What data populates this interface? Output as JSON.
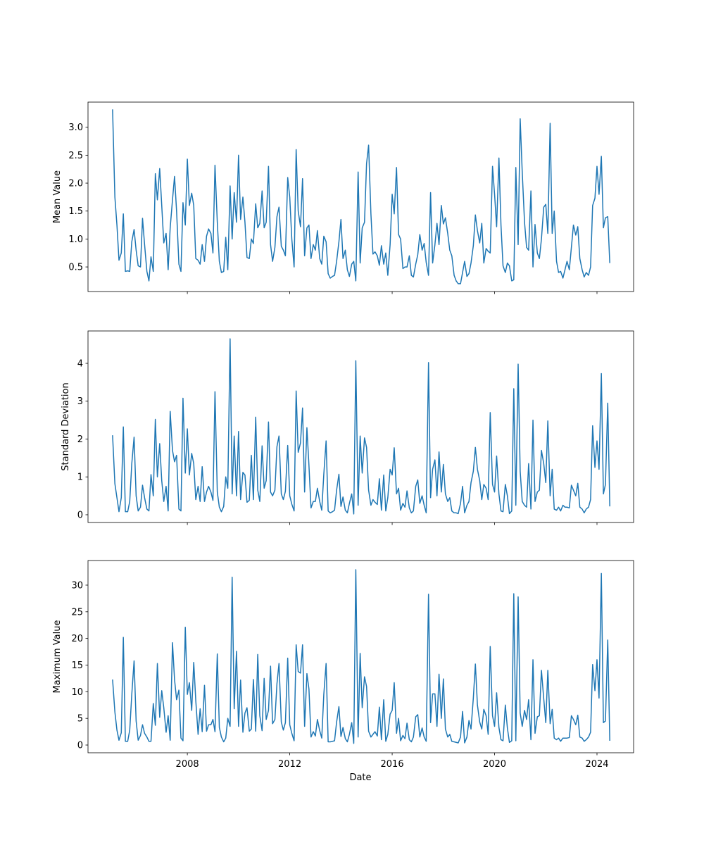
{
  "chart_data": {
    "type": "line",
    "xlabel": "Date",
    "xlim": [
      2004.12,
      2025.43
    ],
    "xticks": [
      2008,
      2012,
      2016,
      2020,
      2024
    ],
    "x": [
      2005.08,
      2005.17,
      2005.25,
      2005.33,
      2005.42,
      2005.5,
      2005.58,
      2005.67,
      2005.75,
      2005.83,
      2005.92,
      2006.0,
      2006.08,
      2006.17,
      2006.25,
      2006.33,
      2006.42,
      2006.5,
      2006.58,
      2006.67,
      2006.75,
      2006.83,
      2006.92,
      2007.0,
      2007.08,
      2007.17,
      2007.25,
      2007.33,
      2007.42,
      2007.5,
      2007.58,
      2007.67,
      2007.75,
      2007.83,
      2007.92,
      2008.0,
      2008.08,
      2008.17,
      2008.25,
      2008.33,
      2008.42,
      2008.5,
      2008.58,
      2008.67,
      2008.75,
      2008.83,
      2008.92,
      2009.0,
      2009.08,
      2009.17,
      2009.25,
      2009.33,
      2009.42,
      2009.5,
      2009.58,
      2009.67,
      2009.75,
      2009.83,
      2009.92,
      2010.0,
      2010.08,
      2010.17,
      2010.25,
      2010.33,
      2010.42,
      2010.5,
      2010.58,
      2010.67,
      2010.75,
      2010.83,
      2010.92,
      2011.0,
      2011.08,
      2011.17,
      2011.25,
      2011.33,
      2011.42,
      2011.5,
      2011.58,
      2011.67,
      2011.75,
      2011.83,
      2011.92,
      2012.0,
      2012.08,
      2012.17,
      2012.25,
      2012.33,
      2012.42,
      2012.5,
      2012.58,
      2012.67,
      2012.75,
      2012.83,
      2012.92,
      2013.0,
      2013.08,
      2013.17,
      2013.25,
      2013.33,
      2013.42,
      2013.5,
      2013.58,
      2013.67,
      2013.75,
      2013.83,
      2013.92,
      2014.0,
      2014.08,
      2014.17,
      2014.25,
      2014.33,
      2014.42,
      2014.5,
      2014.58,
      2014.67,
      2014.75,
      2014.83,
      2014.92,
      2015.0,
      2015.08,
      2015.17,
      2015.25,
      2015.33,
      2015.42,
      2015.5,
      2015.58,
      2015.67,
      2015.75,
      2015.83,
      2015.92,
      2016.0,
      2016.08,
      2016.17,
      2016.25,
      2016.33,
      2016.42,
      2016.5,
      2016.58,
      2016.67,
      2016.75,
      2016.83,
      2016.92,
      2017.0,
      2017.08,
      2017.17,
      2017.25,
      2017.33,
      2017.42,
      2017.5,
      2017.58,
      2017.67,
      2017.75,
      2017.83,
      2017.92,
      2018.0,
      2018.08,
      2018.17,
      2018.25,
      2018.33,
      2018.42,
      2018.5,
      2018.58,
      2018.67,
      2018.75,
      2018.83,
      2018.92,
      2019.0,
      2019.08,
      2019.17,
      2019.25,
      2019.33,
      2019.42,
      2019.5,
      2019.58,
      2019.67,
      2019.75,
      2019.83,
      2019.92,
      2020.0,
      2020.08,
      2020.17,
      2020.25,
      2020.33,
      2020.42,
      2020.5,
      2020.58,
      2020.67,
      2020.75,
      2020.83,
      2020.92,
      2021.0,
      2021.08,
      2021.17,
      2021.25,
      2021.33,
      2021.42,
      2021.5,
      2021.58,
      2021.67,
      2021.75,
      2021.83,
      2021.92,
      2022.0,
      2022.08,
      2022.17,
      2022.25,
      2022.33,
      2022.42,
      2022.5,
      2022.58,
      2022.67,
      2022.75,
      2022.83,
      2022.92,
      2023.0,
      2023.08,
      2023.17,
      2023.25,
      2023.33,
      2023.42,
      2023.5,
      2023.58,
      2023.67,
      2023.75,
      2023.83,
      2023.92,
      2024.0,
      2024.08,
      2024.17,
      2024.25,
      2024.33,
      2024.42,
      2024.5
    ],
    "panels": [
      {
        "ylabel": "Mean Value",
        "ylim": [
          0.06,
          3.45
        ],
        "yticks": [
          0.5,
          {
            "value": 1,
            "label": "1.0"
          },
          1.5,
          {
            "value": 2,
            "label": "2.0"
          },
          2.5,
          {
            "value": 3,
            "label": "3.0"
          }
        ],
        "series": [
          {
            "color": "#1f77b4",
            "values": [
              3.32,
              1.75,
              1.25,
              0.62,
              0.75,
              1.45,
              0.42,
              0.43,
              0.42,
              0.95,
              1.17,
              0.8,
              0.52,
              0.5,
              1.37,
              0.9,
              0.42,
              0.25,
              0.68,
              0.42,
              2.17,
              1.7,
              2.26,
              1.6,
              0.93,
              1.1,
              0.45,
              1.2,
              1.7,
              2.12,
              1.5,
              0.55,
              0.42,
              1.65,
              1.25,
              2.43,
              1.6,
              1.82,
              1.6,
              0.65,
              0.62,
              0.55,
              0.9,
              0.6,
              1.05,
              1.18,
              1.1,
              0.75,
              2.32,
              1.3,
              0.6,
              0.4,
              0.42,
              1.03,
              0.45,
              1.95,
              1.0,
              1.83,
              1.3,
              2.5,
              1.35,
              1.75,
              1.3,
              0.67,
              0.65,
              1.0,
              0.92,
              1.63,
              1.2,
              1.28,
              1.86,
              1.2,
              1.3,
              2.3,
              0.9,
              0.6,
              0.85,
              1.4,
              1.57,
              0.87,
              0.8,
              0.7,
              2.1,
              1.75,
              1.0,
              0.5,
              2.6,
              1.5,
              1.22,
              2.08,
              0.7,
              1.2,
              1.25,
              0.65,
              0.9,
              0.8,
              1.15,
              0.65,
              0.55,
              1.05,
              0.95,
              0.38,
              0.3,
              0.33,
              0.35,
              0.6,
              0.95,
              1.35,
              0.65,
              0.8,
              0.45,
              0.33,
              0.55,
              0.6,
              0.25,
              2.2,
              0.57,
              1.2,
              1.3,
              2.35,
              2.68,
              1.45,
              0.73,
              0.77,
              0.7,
              0.53,
              0.88,
              0.55,
              0.75,
              0.35,
              0.9,
              1.8,
              1.45,
              2.28,
              1.08,
              1.0,
              0.47,
              0.5,
              0.5,
              0.7,
              0.35,
              0.32,
              0.55,
              0.72,
              1.08,
              0.8,
              0.92,
              0.58,
              0.35,
              1.83,
              0.57,
              0.9,
              1.28,
              0.9,
              1.6,
              1.27,
              1.38,
              1.1,
              0.8,
              0.7,
              0.35,
              0.25,
              0.2,
              0.2,
              0.4,
              0.6,
              0.33,
              0.38,
              0.57,
              0.88,
              1.43,
              1.15,
              0.93,
              1.28,
              0.57,
              0.83,
              0.78,
              0.75,
              2.3,
              1.8,
              1.22,
              2.45,
              1.25,
              0.52,
              0.4,
              0.57,
              0.52,
              0.25,
              0.27,
              2.28,
              0.9,
              3.15,
              2.2,
              1.3,
              0.85,
              0.8,
              1.86,
              0.5,
              1.26,
              0.75,
              0.65,
              1.0,
              1.57,
              1.62,
              1.1,
              3.07,
              1.1,
              1.5,
              0.6,
              0.4,
              0.42,
              0.3,
              0.45,
              0.6,
              0.45,
              0.85,
              1.25,
              1.07,
              1.22,
              0.65,
              0.45,
              0.32,
              0.4,
              0.35,
              0.5,
              1.6,
              1.73,
              2.3,
              1.8,
              2.48,
              1.2,
              1.38,
              1.4,
              0.57
            ]
          }
        ]
      },
      {
        "ylabel": "Standard Deviation",
        "ylim": [
          -0.205,
          4.856
        ],
        "yticks": [
          0,
          1,
          2,
          3,
          4
        ],
        "series": [
          {
            "color": "#1f77b4",
            "values": [
              2.1,
              0.82,
              0.45,
              0.08,
              0.45,
              2.32,
              0.08,
              0.08,
              0.35,
              1.35,
              2.05,
              0.5,
              0.1,
              0.2,
              0.78,
              0.45,
              0.15,
              0.1,
              1.06,
              0.5,
              2.52,
              1.0,
              1.88,
              0.9,
              0.35,
              0.75,
              0.1,
              2.73,
              1.7,
              1.4,
              1.57,
              0.15,
              0.1,
              3.08,
              1.1,
              2.27,
              1.05,
              1.62,
              1.35,
              0.4,
              0.75,
              0.35,
              1.27,
              0.35,
              0.6,
              0.75,
              0.6,
              0.38,
              3.25,
              0.6,
              0.2,
              0.08,
              0.22,
              1.0,
              0.7,
              4.65,
              0.55,
              2.08,
              0.5,
              2.2,
              0.4,
              1.12,
              1.05,
              0.33,
              0.38,
              1.57,
              0.4,
              2.58,
              0.65,
              0.35,
              1.82,
              0.7,
              0.9,
              2.45,
              0.6,
              0.5,
              0.65,
              1.8,
              2.08,
              0.55,
              0.4,
              0.62,
              1.83,
              0.5,
              0.28,
              0.1,
              3.27,
              1.65,
              1.9,
              2.82,
              0.6,
              2.3,
              1.3,
              0.18,
              0.35,
              0.35,
              0.7,
              0.35,
              0.12,
              1.07,
              1.95,
              0.1,
              0.05,
              0.08,
              0.12,
              0.65,
              1.07,
              0.22,
              0.47,
              0.12,
              0.05,
              0.3,
              0.55,
              0.02,
              4.07,
              0.25,
              2.08,
              1.1,
              2.03,
              1.78,
              0.65,
              0.25,
              0.4,
              0.33,
              0.27,
              0.95,
              0.12,
              1.05,
              0.1,
              0.45,
              1.2,
              1.05,
              1.77,
              0.55,
              0.7,
              0.12,
              0.3,
              0.2,
              0.63,
              0.18,
              0.05,
              0.1,
              0.75,
              0.92,
              0.3,
              0.5,
              0.25,
              0.05,
              4.02,
              0.45,
              1.2,
              1.45,
              0.5,
              1.66,
              0.6,
              1.33,
              0.55,
              0.35,
              0.45,
              0.1,
              0.05,
              0.05,
              0.03,
              0.3,
              0.75,
              0.05,
              0.25,
              0.35,
              0.85,
              1.15,
              1.78,
              1.2,
              0.9,
              0.4,
              0.8,
              0.7,
              0.4,
              2.7,
              0.8,
              0.6,
              1.55,
              0.55,
              0.1,
              0.08,
              0.8,
              0.5,
              0.03,
              0.1,
              3.33,
              0.25,
              3.98,
              1.15,
              0.35,
              0.25,
              0.2,
              1.35,
              0.15,
              2.5,
              0.35,
              0.6,
              0.65,
              1.7,
              1.35,
              0.85,
              2.48,
              0.5,
              1.2,
              0.15,
              0.12,
              0.2,
              0.1,
              0.25,
              0.2,
              0.2,
              0.18,
              0.78,
              0.65,
              0.5,
              0.83,
              0.2,
              0.15,
              0.05,
              0.15,
              0.2,
              0.4,
              2.35,
              1.25,
              1.95,
              1.2,
              3.73,
              0.55,
              0.8,
              2.95,
              0.22
            ]
          }
        ]
      },
      {
        "ylabel": "Maximum Value",
        "ylim": [
          -1.45,
          34.62
        ],
        "yticks": [
          0,
          5,
          10,
          15,
          20,
          25,
          30
        ],
        "series": [
          {
            "color": "#1f77b4",
            "values": [
              12.3,
              6.2,
              2.8,
              0.9,
              2.3,
              20.2,
              0.7,
              0.7,
              2.8,
              9.5,
              15.8,
              4.5,
              0.9,
              1.8,
              3.8,
              2.2,
              1.5,
              0.7,
              0.7,
              7.8,
              3.7,
              15.3,
              5.2,
              10.2,
              7.0,
              2.4,
              5.5,
              0.9,
              19.2,
              12.3,
              8.5,
              10.3,
              1.3,
              0.8,
              22.1,
              9.5,
              11.7,
              6.5,
              15.5,
              8.3,
              2.0,
              6.8,
              2.5,
              11.2,
              2.6,
              3.8,
              3.8,
              4.8,
              2.5,
              17.1,
              3.3,
              1.5,
              0.6,
              1.3,
              5.0,
              3.5,
              31.5,
              6.8,
              17.6,
              3.5,
              12.2,
              2.4,
              6.0,
              7.0,
              2.6,
              3.0,
              12.3,
              2.6,
              17.0,
              5.5,
              2.7,
              12.5,
              4.8,
              6.5,
              14.8,
              4.0,
              4.8,
              11.5,
              15.3,
              4.3,
              2.8,
              4.2,
              16.3,
              3.8,
              2.2,
              0.8,
              18.8,
              13.8,
              13.5,
              18.8,
              3.5,
              13.4,
              10.5,
              1.5,
              2.5,
              1.7,
              4.8,
              2.7,
              1.3,
              9.5,
              15.3,
              0.6,
              0.6,
              0.7,
              0.8,
              4.3,
              7.2,
              1.6,
              3.3,
              1.2,
              0.6,
              2.0,
              4.2,
              0.3,
              32.9,
              1.5,
              17.2,
              7.0,
              12.8,
              11.0,
              2.6,
              1.5,
              2.0,
              2.5,
              1.7,
              7.1,
              1.0,
              8.5,
              0.7,
              2.0,
              5.8,
              6.5,
              11.7,
              2.2,
              5.0,
              0.8,
              1.8,
              1.2,
              4.1,
              1.0,
              0.6,
              1.5,
              5.3,
              5.7,
              1.5,
              3.2,
              1.5,
              0.7,
              28.3,
              4.2,
              9.6,
              9.6,
              3.5,
              13.3,
              5.0,
              12.4,
              3.0,
              1.5,
              2.0,
              0.7,
              0.6,
              0.5,
              0.4,
              1.5,
              6.3,
              0.4,
              1.5,
              4.6,
              3.0,
              8.8,
              15.2,
              7.5,
              4.3,
              3.0,
              6.7,
              5.5,
              2.0,
              18.5,
              5.5,
              3.5,
              9.8,
              3.3,
              1.0,
              0.8,
              7.5,
              3.2,
              0.5,
              0.8,
              28.4,
              0.8,
              27.8,
              6.0,
              3.5,
              6.5,
              4.8,
              8.5,
              1.0,
              16.0,
              2.2,
              5.3,
              5.5,
              14.0,
              8.7,
              4.2,
              14.0,
              4.0,
              6.7,
              1.3,
              1.0,
              1.3,
              0.7,
              1.3,
              1.3,
              1.3,
              1.4,
              5.5,
              4.8,
              3.8,
              5.6,
              1.5,
              1.3,
              0.7,
              1.0,
              1.5,
              2.4,
              15.1,
              10.2,
              16.0,
              8.8,
              32.2,
              4.2,
              4.5,
              19.7,
              0.8
            ]
          }
        ]
      }
    ]
  }
}
